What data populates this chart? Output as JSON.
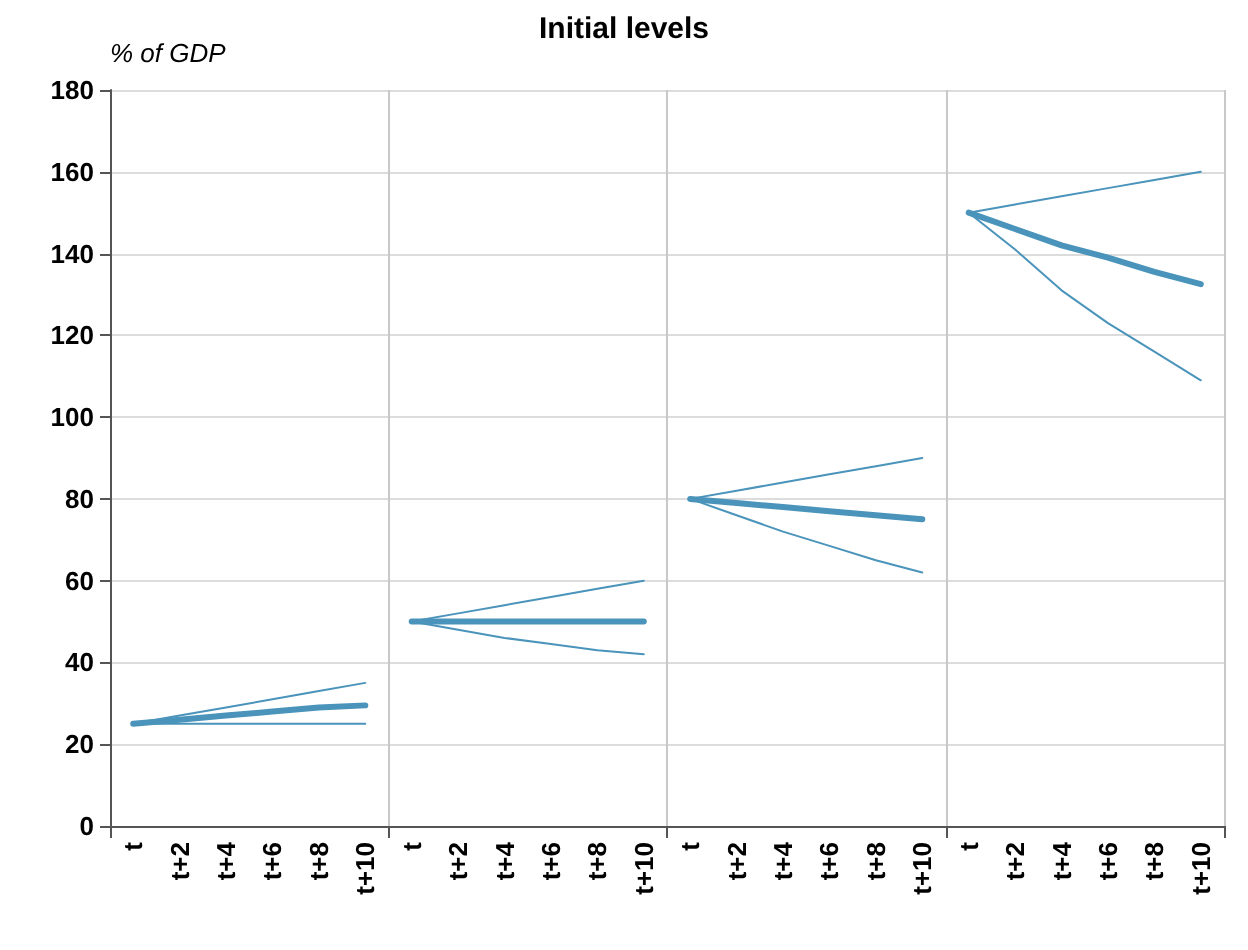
{
  "chart_data": {
    "type": "line",
    "title": "Initial levels",
    "ylabel": "% of GDP",
    "categories": [
      "t",
      "t+2",
      "t+4",
      "t+6",
      "t+8",
      "t+10",
      "t",
      "t+2",
      "t+4",
      "t+6",
      "t+8",
      "t+10",
      "t",
      "t+2",
      "t+4",
      "t+6",
      "t+8",
      "t+10",
      "t",
      "t+2",
      "t+4",
      "t+6",
      "t+8",
      "t+10"
    ],
    "series": [
      {
        "color": "#4a94bb",
        "values": [
          25,
          27,
          29,
          31,
          33,
          35,
          null,
          null,
          null,
          null,
          null,
          null,
          null,
          null,
          null,
          null,
          null,
          null,
          null,
          null,
          null,
          null,
          null,
          null
        ]
      },
      {
        "color": "#4a94bb",
        "values": [
          25,
          26,
          27,
          28,
          29,
          29.5,
          null,
          null,
          null,
          null,
          null,
          null,
          null,
          null,
          null,
          null,
          null,
          null,
          null,
          null,
          null,
          null,
          null,
          null
        ]
      },
      {
        "color": "#4a94bb",
        "values": [
          25,
          25,
          25,
          25,
          25,
          25,
          null,
          null,
          null,
          null,
          null,
          null,
          null,
          null,
          null,
          null,
          null,
          null,
          null,
          null,
          null,
          null,
          null,
          null
        ]
      },
      {
        "color": "#4a94bb",
        "values": [
          null,
          null,
          null,
          null,
          null,
          null,
          50,
          52,
          54,
          56,
          58,
          60,
          null,
          null,
          null,
          null,
          null,
          null,
          null,
          null,
          null,
          null,
          null,
          null
        ]
      },
      {
        "color": "#4a94bb",
        "values": [
          null,
          null,
          null,
          null,
          null,
          null,
          50,
          50,
          50,
          50,
          50,
          50,
          null,
          null,
          null,
          null,
          null,
          null,
          null,
          null,
          null,
          null,
          null,
          null
        ]
      },
      {
        "color": "#4a94bb",
        "values": [
          null,
          null,
          null,
          null,
          null,
          null,
          50,
          48,
          46,
          44.5,
          43,
          42,
          null,
          null,
          null,
          null,
          null,
          null,
          null,
          null,
          null,
          null,
          null,
          null
        ]
      },
      {
        "color": "#4a94bb",
        "values": [
          null,
          null,
          null,
          null,
          null,
          null,
          null,
          null,
          null,
          null,
          null,
          null,
          80,
          82,
          84,
          86,
          88,
          90,
          null,
          null,
          null,
          null,
          null,
          null
        ]
      },
      {
        "color": "#4a94bb",
        "values": [
          null,
          null,
          null,
          null,
          null,
          null,
          null,
          null,
          null,
          null,
          null,
          null,
          80,
          79,
          78,
          77,
          76,
          75,
          null,
          null,
          null,
          null,
          null,
          null
        ]
      },
      {
        "color": "#4a94bb",
        "values": [
          null,
          null,
          null,
          null,
          null,
          null,
          null,
          null,
          null,
          null,
          null,
          null,
          80,
          76,
          72,
          68.5,
          65,
          62,
          null,
          null,
          null,
          null,
          null,
          null
        ]
      },
      {
        "color": "#4a94bb",
        "values": [
          null,
          null,
          null,
          null,
          null,
          null,
          null,
          null,
          null,
          null,
          null,
          null,
          null,
          null,
          null,
          null,
          null,
          null,
          150,
          152,
          154,
          156,
          158,
          160
        ]
      },
      {
        "color": "#4a94bb",
        "values": [
          null,
          null,
          null,
          null,
          null,
          null,
          null,
          null,
          null,
          null,
          null,
          null,
          null,
          null,
          null,
          null,
          null,
          null,
          150,
          146,
          142,
          139,
          135.5,
          132.5
        ]
      },
      {
        "color": "#4a94bb",
        "values": [
          null,
          null,
          null,
          null,
          null,
          null,
          null,
          null,
          null,
          null,
          null,
          null,
          null,
          null,
          null,
          null,
          null,
          null,
          150,
          141,
          131,
          123,
          116,
          109
        ]
      }
    ],
    "ylim": [
      0,
      180
    ],
    "yticks": [
      0,
      20,
      40,
      60,
      80,
      100,
      120,
      140,
      160,
      180
    ],
    "grid": true,
    "marker": "none",
    "line_style": "solid"
  }
}
